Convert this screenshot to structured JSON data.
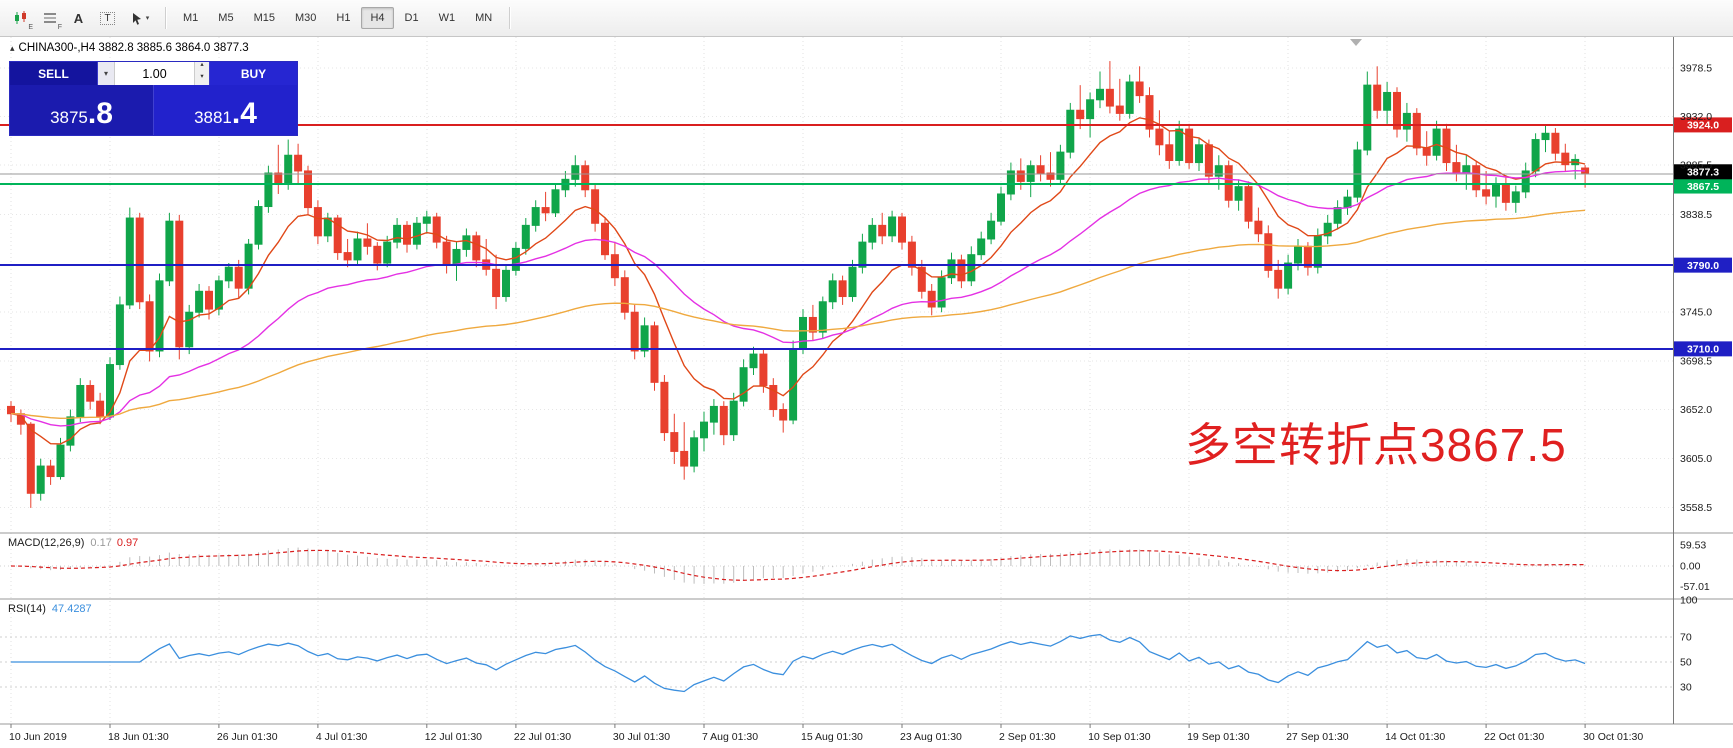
{
  "toolbar": {
    "icons": [
      {
        "name": "candlestick-style",
        "badge": "E"
      },
      {
        "name": "line-studies",
        "badge": "F"
      },
      {
        "name": "text-label",
        "label": "A"
      },
      {
        "name": "text-box",
        "label": "T"
      },
      {
        "name": "cursor-tools",
        "caret": "▾"
      }
    ],
    "timeframes": [
      {
        "label": "M1"
      },
      {
        "label": "M5"
      },
      {
        "label": "M15"
      },
      {
        "label": "M30"
      },
      {
        "label": "H1"
      },
      {
        "label": "H4",
        "selected": true
      },
      {
        "label": "D1"
      },
      {
        "label": "W1"
      },
      {
        "label": "MN"
      }
    ]
  },
  "header": {
    "collapse_icon": "▴",
    "symbol_line": "CHINA300-,H4 3882.8 3885.6 3864.0 3877.3"
  },
  "trade_panel": {
    "sell_label": "SELL",
    "buy_label": "BUY",
    "volume_value": "1.00",
    "volume_dropdown_icon": "▾",
    "spin_up_icon": "▴",
    "spin_down_icon": "▾",
    "sell_price_int": "3875",
    "sell_price_frac": ".8",
    "buy_price_int": "3881",
    "buy_price_frac": ".4"
  },
  "chart": {
    "annotation": {
      "text": "多空转折点3867.5",
      "color": "#e02020"
    }
  },
  "colors": {
    "candle_up": "#10a54a",
    "candle_down": "#e8402e",
    "level_red": "#d91f1f",
    "level_green": "#00b45a",
    "level_blue": "#1f1fc4",
    "panel_blue": "#1d1db6"
  },
  "chart_data": {
    "type": "candlestick",
    "symbol": "CHINA300-",
    "timeframe": "H4",
    "last_ohlc": {
      "open": 3882.8,
      "high": 3885.6,
      "low": 3864.0,
      "close": 3877.3
    },
    "price_range": [
      3535,
      4008
    ],
    "up_color": "#10a54a",
    "down_color": "#e8402e",
    "price_axis_labels": [
      {
        "label": "3978.5",
        "value": 3978.5
      },
      {
        "label": "3932.0",
        "value": 3932.0
      },
      {
        "label": "3885.5",
        "value": 3885.5
      },
      {
        "label": "3838.5",
        "value": 3838.5
      },
      {
        "label": "3745.0",
        "value": 3745.0
      },
      {
        "label": "3698.5",
        "value": 3698.5
      },
      {
        "label": "3652.0",
        "value": 3652.0
      },
      {
        "label": "3605.0",
        "value": 3605.0
      },
      {
        "label": "3558.5",
        "value": 3558.5
      }
    ],
    "horizontal_levels": [
      {
        "label": "3924.0",
        "value": 3924.0,
        "color": "#d91f1f",
        "width": 2
      },
      {
        "label": "3867.5",
        "value": 3867.5,
        "color": "#00b45a",
        "width": 2
      },
      {
        "label": "3790.0",
        "value": 3790.0,
        "color": "#1f1fc4",
        "width": 2
      },
      {
        "label": "3710.0",
        "value": 3710.0,
        "color": "#1f1fc4",
        "width": 2
      }
    ],
    "current_price": {
      "label": "3877.3",
      "value": 3877.3
    },
    "moving_averages": [
      {
        "name": "ma-fast",
        "period": 10,
        "color": "#e04818"
      },
      {
        "name": "ma-mid",
        "period": 34,
        "color": "#e431e4"
      },
      {
        "name": "ma-slow",
        "period": 100,
        "color": "#efa93f"
      }
    ],
    "x_labels": [
      {
        "label": "10 Jun 2019",
        "index": 0
      },
      {
        "label": "18 Jun 01:30",
        "index": 10
      },
      {
        "label": "26 Jun 01:30",
        "index": 21
      },
      {
        "label": "4 Jul 01:30",
        "index": 31
      },
      {
        "label": "12 Jul 01:30",
        "index": 42
      },
      {
        "label": "22 Jul 01:30",
        "index": 51
      },
      {
        "label": "30 Jul 01:30",
        "index": 61
      },
      {
        "label": "7 Aug 01:30",
        "index": 70
      },
      {
        "label": "15 Aug 01:30",
        "index": 80
      },
      {
        "label": "23 Aug 01:30",
        "index": 90
      },
      {
        "label": "2 Sep 01:30",
        "index": 100
      },
      {
        "label": "10 Sep 01:30",
        "index": 109
      },
      {
        "label": "19 Sep 01:30",
        "index": 119
      },
      {
        "label": "27 Sep 01:30",
        "index": 129
      },
      {
        "label": "14 Oct 01:30",
        "index": 139
      },
      {
        "label": "22 Oct 01:30",
        "index": 149
      },
      {
        "label": "30 Oct 01:30",
        "index": 159
      }
    ],
    "candles": [
      [
        3655,
        3660,
        3640,
        3648
      ],
      [
        3648,
        3652,
        3628,
        3638
      ],
      [
        3638,
        3640,
        3558,
        3572
      ],
      [
        3572,
        3605,
        3565,
        3598
      ],
      [
        3598,
        3604,
        3580,
        3588
      ],
      [
        3588,
        3625,
        3585,
        3618
      ],
      [
        3618,
        3652,
        3612,
        3645
      ],
      [
        3645,
        3682,
        3640,
        3675
      ],
      [
        3675,
        3680,
        3652,
        3660
      ],
      [
        3660,
        3668,
        3638,
        3645
      ],
      [
        3645,
        3702,
        3642,
        3695
      ],
      [
        3695,
        3760,
        3690,
        3752
      ],
      [
        3752,
        3845,
        3748,
        3835
      ],
      [
        3835,
        3840,
        3748,
        3755
      ],
      [
        3755,
        3762,
        3698,
        3708
      ],
      [
        3708,
        3782,
        3702,
        3775
      ],
      [
        3775,
        3840,
        3770,
        3832
      ],
      [
        3832,
        3838,
        3700,
        3712
      ],
      [
        3712,
        3752,
        3705,
        3745
      ],
      [
        3745,
        3772,
        3740,
        3765
      ],
      [
        3765,
        3770,
        3738,
        3748
      ],
      [
        3748,
        3780,
        3742,
        3775
      ],
      [
        3775,
        3792,
        3768,
        3788
      ],
      [
        3788,
        3795,
        3758,
        3768
      ],
      [
        3768,
        3815,
        3762,
        3810
      ],
      [
        3810,
        3852,
        3805,
        3846
      ],
      [
        3846,
        3885,
        3840,
        3878
      ],
      [
        3878,
        3905,
        3858,
        3868
      ],
      [
        3868,
        3910,
        3862,
        3895
      ],
      [
        3895,
        3906,
        3868,
        3880
      ],
      [
        3880,
        3885,
        3838,
        3845
      ],
      [
        3845,
        3852,
        3810,
        3818
      ],
      [
        3818,
        3840,
        3812,
        3835
      ],
      [
        3835,
        3838,
        3795,
        3802
      ],
      [
        3802,
        3815,
        3788,
        3795
      ],
      [
        3795,
        3822,
        3790,
        3815
      ],
      [
        3815,
        3830,
        3800,
        3808
      ],
      [
        3808,
        3812,
        3785,
        3792
      ],
      [
        3792,
        3818,
        3788,
        3812
      ],
      [
        3812,
        3835,
        3806,
        3828
      ],
      [
        3828,
        3832,
        3802,
        3810
      ],
      [
        3810,
        3836,
        3805,
        3830
      ],
      [
        3830,
        3842,
        3820,
        3836
      ],
      [
        3836,
        3840,
        3806,
        3812
      ],
      [
        3812,
        3818,
        3782,
        3790
      ],
      [
        3790,
        3812,
        3775,
        3805
      ],
      [
        3805,
        3825,
        3798,
        3818
      ],
      [
        3818,
        3822,
        3788,
        3795
      ],
      [
        3795,
        3815,
        3780,
        3786
      ],
      [
        3786,
        3800,
        3748,
        3760
      ],
      [
        3760,
        3790,
        3755,
        3785
      ],
      [
        3785,
        3812,
        3780,
        3806
      ],
      [
        3806,
        3835,
        3800,
        3828
      ],
      [
        3828,
        3852,
        3822,
        3845
      ],
      [
        3845,
        3860,
        3832,
        3840
      ],
      [
        3840,
        3868,
        3836,
        3862
      ],
      [
        3862,
        3880,
        3855,
        3872
      ],
      [
        3872,
        3895,
        3865,
        3885
      ],
      [
        3885,
        3890,
        3855,
        3862
      ],
      [
        3862,
        3868,
        3822,
        3830
      ],
      [
        3830,
        3836,
        3795,
        3800
      ],
      [
        3800,
        3812,
        3770,
        3778
      ],
      [
        3778,
        3785,
        3738,
        3745
      ],
      [
        3745,
        3752,
        3700,
        3708
      ],
      [
        3708,
        3740,
        3702,
        3732
      ],
      [
        3732,
        3736,
        3670,
        3678
      ],
      [
        3678,
        3685,
        3622,
        3630
      ],
      [
        3630,
        3648,
        3600,
        3612
      ],
      [
        3612,
        3640,
        3585,
        3598
      ],
      [
        3598,
        3632,
        3592,
        3625
      ],
      [
        3625,
        3650,
        3612,
        3640
      ],
      [
        3640,
        3662,
        3628,
        3655
      ],
      [
        3655,
        3660,
        3618,
        3628
      ],
      [
        3628,
        3668,
        3622,
        3660
      ],
      [
        3660,
        3700,
        3655,
        3692
      ],
      [
        3692,
        3712,
        3685,
        3705
      ],
      [
        3705,
        3710,
        3668,
        3675
      ],
      [
        3675,
        3682,
        3645,
        3652
      ],
      [
        3652,
        3658,
        3630,
        3642
      ],
      [
        3642,
        3718,
        3638,
        3710
      ],
      [
        3710,
        3748,
        3705,
        3740
      ],
      [
        3740,
        3752,
        3718,
        3726
      ],
      [
        3726,
        3760,
        3720,
        3755
      ],
      [
        3755,
        3782,
        3748,
        3775
      ],
      [
        3775,
        3780,
        3752,
        3760
      ],
      [
        3760,
        3795,
        3755,
        3788
      ],
      [
        3788,
        3820,
        3782,
        3812
      ],
      [
        3812,
        3835,
        3805,
        3828
      ],
      [
        3828,
        3840,
        3810,
        3818
      ],
      [
        3818,
        3842,
        3812,
        3836
      ],
      [
        3836,
        3840,
        3805,
        3812
      ],
      [
        3812,
        3818,
        3780,
        3788
      ],
      [
        3788,
        3795,
        3758,
        3765
      ],
      [
        3765,
        3772,
        3742,
        3750
      ],
      [
        3750,
        3785,
        3745,
        3778
      ],
      [
        3778,
        3802,
        3772,
        3795
      ],
      [
        3795,
        3800,
        3768,
        3775
      ],
      [
        3775,
        3808,
        3770,
        3800
      ],
      [
        3800,
        3822,
        3795,
        3815
      ],
      [
        3815,
        3840,
        3810,
        3832
      ],
      [
        3832,
        3865,
        3828,
        3858
      ],
      [
        3858,
        3888,
        3852,
        3880
      ],
      [
        3880,
        3892,
        3862,
        3870
      ],
      [
        3870,
        3890,
        3855,
        3885
      ],
      [
        3885,
        3895,
        3870,
        3878
      ],
      [
        3878,
        3898,
        3865,
        3872
      ],
      [
        3872,
        3905,
        3868,
        3898
      ],
      [
        3898,
        3945,
        3892,
        3938
      ],
      [
        3938,
        3962,
        3920,
        3930
      ],
      [
        3930,
        3955,
        3912,
        3948
      ],
      [
        3948,
        3975,
        3940,
        3958
      ],
      [
        3958,
        3985,
        3935,
        3942
      ],
      [
        3942,
        3968,
        3928,
        3935
      ],
      [
        3935,
        3972,
        3930,
        3965
      ],
      [
        3965,
        3980,
        3945,
        3952
      ],
      [
        3952,
        3960,
        3912,
        3920
      ],
      [
        3920,
        3938,
        3895,
        3905
      ],
      [
        3905,
        3918,
        3882,
        3890
      ],
      [
        3890,
        3928,
        3885,
        3920
      ],
      [
        3920,
        3925,
        3882,
        3888
      ],
      [
        3888,
        3912,
        3880,
        3905
      ],
      [
        3905,
        3910,
        3868,
        3875
      ],
      [
        3875,
        3895,
        3862,
        3885
      ],
      [
        3885,
        3890,
        3845,
        3852
      ],
      [
        3852,
        3872,
        3842,
        3865
      ],
      [
        3865,
        3870,
        3825,
        3832
      ],
      [
        3832,
        3845,
        3812,
        3820
      ],
      [
        3820,
        3828,
        3778,
        3785
      ],
      [
        3785,
        3795,
        3758,
        3768
      ],
      [
        3768,
        3800,
        3762,
        3792
      ],
      [
        3792,
        3815,
        3785,
        3808
      ],
      [
        3808,
        3812,
        3780,
        3788
      ],
      [
        3788,
        3825,
        3782,
        3818
      ],
      [
        3818,
        3838,
        3810,
        3830
      ],
      [
        3830,
        3852,
        3824,
        3845
      ],
      [
        3845,
        3862,
        3838,
        3855
      ],
      [
        3855,
        3908,
        3850,
        3900
      ],
      [
        3900,
        3975,
        3895,
        3962
      ],
      [
        3962,
        3980,
        3930,
        3938
      ],
      [
        3938,
        3965,
        3925,
        3955
      ],
      [
        3955,
        3960,
        3912,
        3920
      ],
      [
        3920,
        3945,
        3908,
        3935
      ],
      [
        3935,
        3940,
        3895,
        3902
      ],
      [
        3902,
        3918,
        3885,
        3895
      ],
      [
        3895,
        3928,
        3890,
        3920
      ],
      [
        3920,
        3925,
        3880,
        3888
      ],
      [
        3888,
        3905,
        3870,
        3878
      ],
      [
        3878,
        3895,
        3862,
        3885
      ],
      [
        3885,
        3890,
        3855,
        3862
      ],
      [
        3862,
        3880,
        3848,
        3856
      ],
      [
        3856,
        3874,
        3845,
        3868
      ],
      [
        3868,
        3876,
        3842,
        3850
      ],
      [
        3850,
        3866,
        3840,
        3860
      ],
      [
        3860,
        3888,
        3854,
        3880
      ],
      [
        3880,
        3916,
        3874,
        3910
      ],
      [
        3910,
        3923,
        3898,
        3916
      ],
      [
        3916,
        3921,
        3890,
        3897
      ],
      [
        3897,
        3906,
        3880,
        3886
      ],
      [
        3886,
        3896,
        3872,
        3891
      ],
      [
        3882.8,
        3885.6,
        3864.0,
        3877.3
      ]
    ],
    "macd": {
      "label": "MACD(12,26,9)",
      "value_main": "0.17",
      "value_signal": "0.97",
      "fast": 12,
      "slow": 26,
      "signal": 9,
      "range": [
        -90,
        90
      ],
      "axis_labels": [
        {
          "label": "59.53",
          "value": 59.53
        },
        {
          "label": "0.00",
          "value": 0
        },
        {
          "label": "-57.01",
          "value": -57.01
        }
      ],
      "hist_color": "#bdbdbd",
      "signal_color": "#d91f1f"
    },
    "rsi": {
      "label": "RSI(14)",
      "value": "47.4287",
      "period": 14,
      "range": [
        0,
        100
      ],
      "levels": [
        70,
        50,
        30
      ],
      "axis_labels": [
        {
          "label": "100",
          "value": 100
        },
        {
          "label": "70",
          "value": 70
        },
        {
          "label": "50",
          "value": 50
        },
        {
          "label": "30",
          "value": 30
        }
      ],
      "color": "#3b8fde"
    }
  }
}
